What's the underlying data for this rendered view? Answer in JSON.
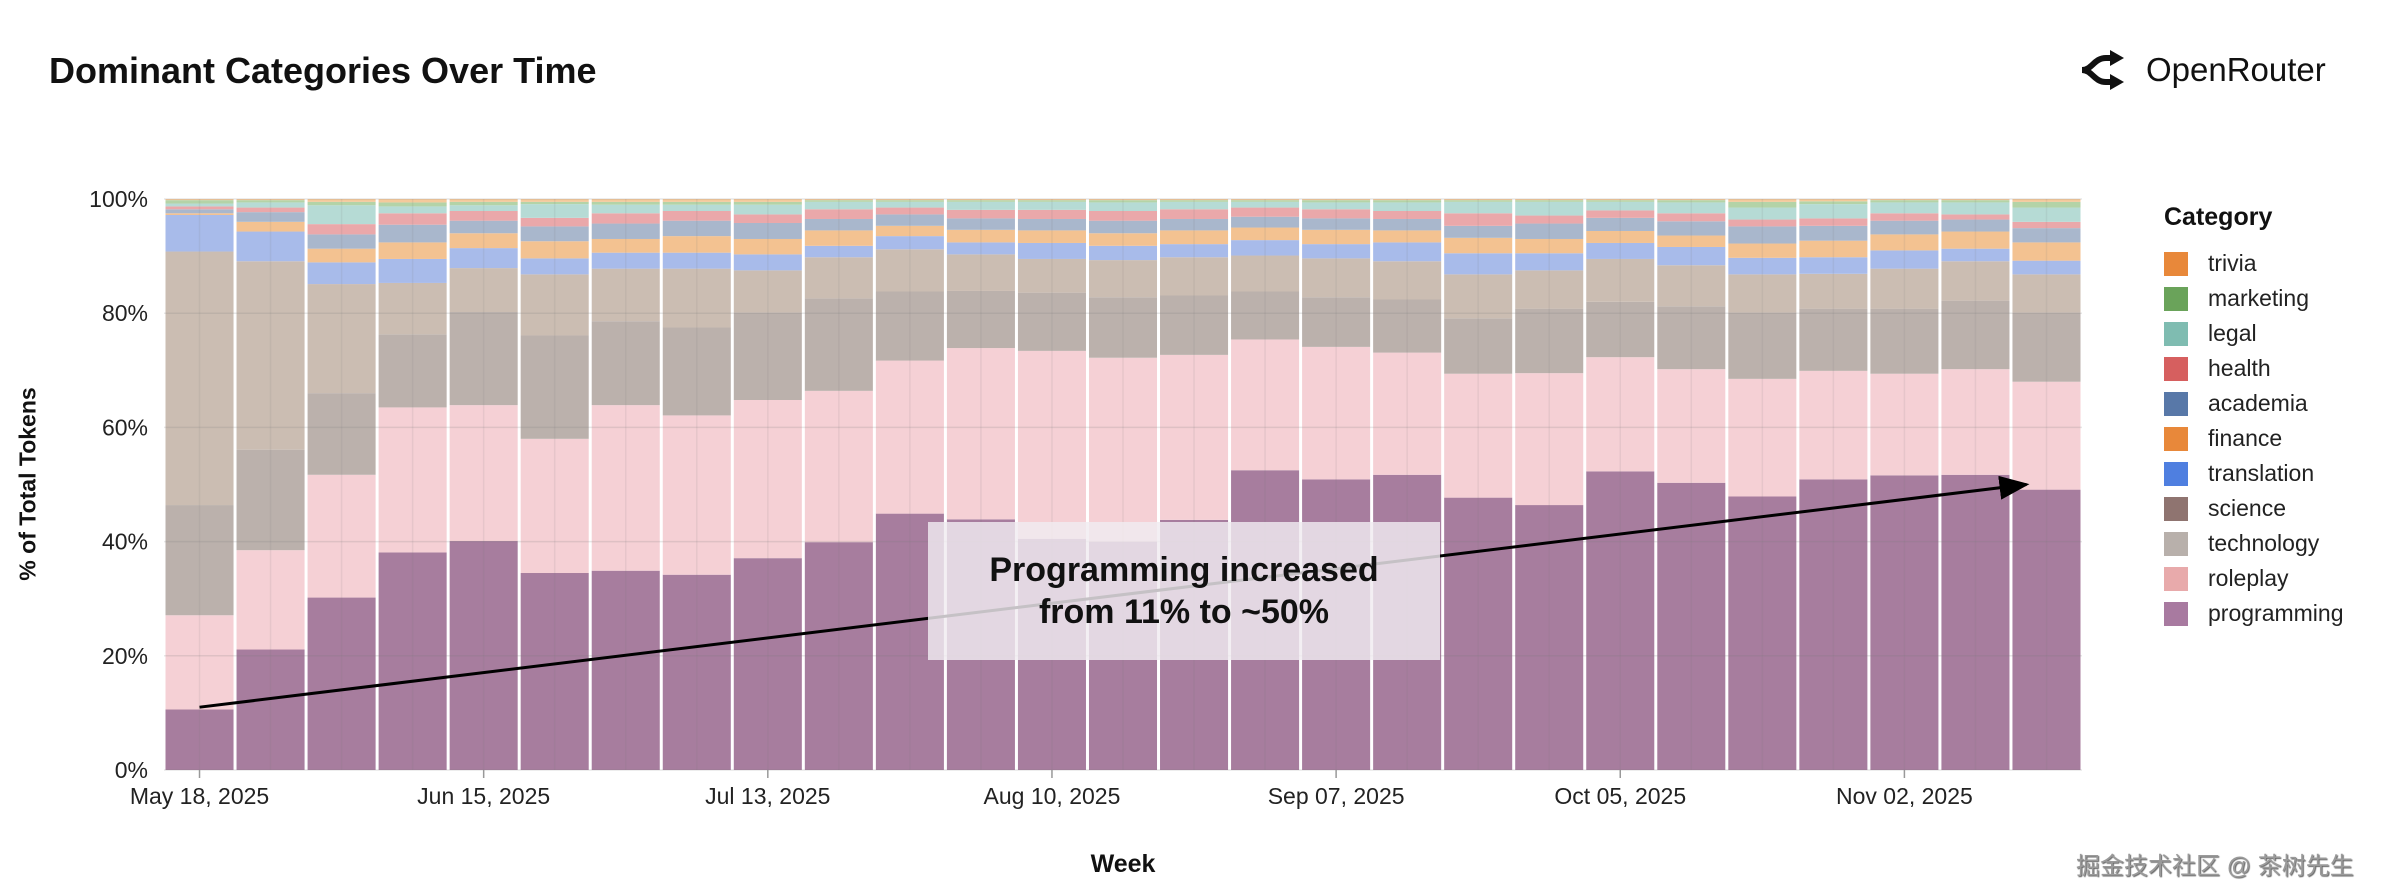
{
  "header": {
    "title": "Dominant Categories Over Time",
    "brand": "OpenRouter",
    "brand_icon": "openrouter-logo-icon"
  },
  "annotation": {
    "line1": "Programming increased",
    "line2": "from 11% to ~50%"
  },
  "watermark": "掘金技术社区 @ 茶树先生",
  "chart_data": {
    "type": "bar",
    "stacked": true,
    "normalized": true,
    "title": "Dominant Categories Over Time",
    "xlabel": "Week",
    "ylabel": "% of Total Tokens",
    "ylim": [
      0,
      100
    ],
    "yticks": [
      "0%",
      "20%",
      "40%",
      "60%",
      "80%",
      "100%"
    ],
    "grid": true,
    "legend_title": "Category",
    "legend_position": "right",
    "categories": [
      "May 18, 2025",
      "May 25, 2025",
      "Jun 01, 2025",
      "Jun 08, 2025",
      "Jun 15, 2025",
      "Jun 22, 2025",
      "Jun 29, 2025",
      "Jul 06, 2025",
      "Jul 13, 2025",
      "Jul 20, 2025",
      "Jul 27, 2025",
      "Aug 03, 2025",
      "Aug 10, 2025",
      "Aug 17, 2025",
      "Aug 24, 2025",
      "Aug 31, 2025",
      "Sep 07, 2025",
      "Sep 14, 2025",
      "Sep 21, 2025",
      "Sep 28, 2025",
      "Oct 05, 2025",
      "Oct 12, 2025",
      "Oct 19, 2025",
      "Oct 26, 2025",
      "Nov 02, 2025",
      "Nov 09, 2025",
      "Nov 16, 2025"
    ],
    "xtick_labels": [
      "May 18, 2025",
      "Jun 15, 2025",
      "Jul 13, 2025",
      "Aug 10, 2025",
      "Sep 07, 2025",
      "Oct 05, 2025",
      "Nov 02, 2025"
    ],
    "series": [
      {
        "name": "programming",
        "color": "#a87aa0",
        "fill": "#a77d9e",
        "values": [
          10.6,
          21.1,
          30.2,
          38.1,
          40.1,
          34.5,
          34.9,
          34.2,
          37.1,
          39.9,
          44.9,
          43.9,
          40.5,
          40.0,
          43.8,
          52.5,
          50.9,
          51.7,
          47.7,
          46.4,
          52.3,
          50.3,
          47.9,
          50.9,
          51.6,
          51.7,
          49.1
        ]
      },
      {
        "name": "roleplay",
        "color": "#e8aaab",
        "fill": "#f5d0d5",
        "values": [
          16.5,
          17.4,
          21.5,
          25.4,
          23.8,
          23.5,
          29.0,
          27.9,
          27.7,
          26.5,
          26.8,
          30.0,
          32.9,
          32.2,
          28.9,
          22.9,
          23.2,
          21.4,
          21.7,
          23.1,
          20.0,
          19.9,
          20.6,
          19.0,
          17.8,
          18.5,
          18.9
        ]
      },
      {
        "name": "technology",
        "color": "#b8b0ab",
        "fill": "#bbb1ac",
        "values": [
          19.3,
          17.6,
          14.3,
          12.8,
          16.3,
          18.1,
          14.7,
          15.4,
          15.3,
          16.2,
          12.1,
          10.0,
          10.2,
          10.6,
          10.4,
          8.4,
          8.7,
          9.3,
          9.7,
          11.3,
          9.7,
          11.0,
          11.6,
          10.9,
          11.4,
          12.0,
          12.1
        ]
      },
      {
        "name": "science",
        "color": "#8f7470",
        "fill": "#cbbdb2",
        "values": [
          44.4,
          33.0,
          19.1,
          9.0,
          7.7,
          10.7,
          9.2,
          10.3,
          7.4,
          7.2,
          7.4,
          6.4,
          5.9,
          6.5,
          6.7,
          6.3,
          6.8,
          6.7,
          7.7,
          6.7,
          7.5,
          7.2,
          6.7,
          6.1,
          7.0,
          6.9,
          6.7
        ]
      },
      {
        "name": "translation",
        "color": "#4f7fe0",
        "fill": "#a8bbea",
        "values": [
          6.4,
          5.2,
          3.8,
          4.2,
          3.5,
          2.8,
          2.8,
          2.8,
          2.8,
          2.0,
          2.3,
          2.1,
          2.8,
          2.5,
          2.3,
          2.7,
          2.5,
          3.3,
          3.7,
          3.0,
          2.8,
          3.2,
          2.9,
          2.9,
          3.2,
          2.2,
          2.4
        ]
      },
      {
        "name": "finance",
        "color": "#e8883a",
        "fill": "#f3c291",
        "values": [
          0.3,
          1.7,
          2.4,
          2.9,
          2.6,
          3.0,
          2.4,
          2.9,
          2.7,
          2.7,
          1.8,
          2.2,
          2.2,
          2.2,
          2.4,
          2.2,
          2.5,
          2.1,
          2.7,
          2.5,
          2.1,
          2.0,
          2.5,
          2.9,
          2.8,
          3.0,
          3.2
        ]
      },
      {
        "name": "academia",
        "color": "#5878a8",
        "fill": "#a9b7cc",
        "values": [
          0.7,
          1.7,
          2.5,
          3.1,
          2.2,
          2.6,
          2.7,
          2.7,
          2.8,
          2.0,
          2.0,
          2.0,
          2.0,
          2.2,
          2.0,
          1.9,
          2.0,
          2.0,
          2.1,
          2.7,
          2.3,
          2.5,
          3.0,
          2.6,
          2.4,
          2.1,
          2.5
        ]
      },
      {
        "name": "health",
        "color": "#d65f5f",
        "fill": "#eaa8aa",
        "values": [
          0.5,
          0.8,
          1.8,
          2.0,
          1.7,
          1.5,
          1.8,
          1.7,
          1.5,
          1.7,
          1.2,
          1.5,
          1.6,
          1.7,
          1.7,
          1.6,
          1.6,
          1.4,
          2.2,
          1.4,
          1.3,
          1.4,
          1.2,
          1.3,
          1.3,
          0.9,
          1.1
        ]
      },
      {
        "name": "legal",
        "color": "#7fbcb1",
        "fill": "#b6dbd5",
        "values": [
          0.5,
          0.9,
          3.3,
          1.2,
          1.0,
          2.4,
          1.5,
          1.1,
          1.7,
          1.3,
          1.0,
          1.4,
          1.4,
          1.5,
          1.3,
          1.0,
          1.2,
          1.5,
          2.0,
          2.4,
          1.5,
          1.9,
          2.1,
          2.5,
          1.9,
          2.1,
          2.5
        ]
      },
      {
        "name": "marketing",
        "color": "#6aa35a",
        "fill": "#b4d3a7",
        "values": [
          0.6,
          0.4,
          0.6,
          0.7,
          0.6,
          0.4,
          0.5,
          0.5,
          0.5,
          0.3,
          0.3,
          0.3,
          0.3,
          0.4,
          0.3,
          0.3,
          0.4,
          0.4,
          0.3,
          0.3,
          0.3,
          0.4,
          1.0,
          0.5,
          0.4,
          0.4,
          1.0
        ]
      },
      {
        "name": "trivia",
        "color": "#e8883a",
        "fill": "#f4c99b",
        "values": [
          0.2,
          0.2,
          0.5,
          0.6,
          0.5,
          0.5,
          0.5,
          0.5,
          0.5,
          0.2,
          0.2,
          0.2,
          0.2,
          0.2,
          0.2,
          0.2,
          0.2,
          0.2,
          0.2,
          0.2,
          0.2,
          0.2,
          0.5,
          0.4,
          0.2,
          0.2,
          0.5
        ]
      }
    ],
    "trend_arrow": {
      "from": {
        "x": "May 18, 2025",
        "y": 11
      },
      "to": {
        "x": "Nov 16, 2025",
        "y": 50
      }
    }
  }
}
